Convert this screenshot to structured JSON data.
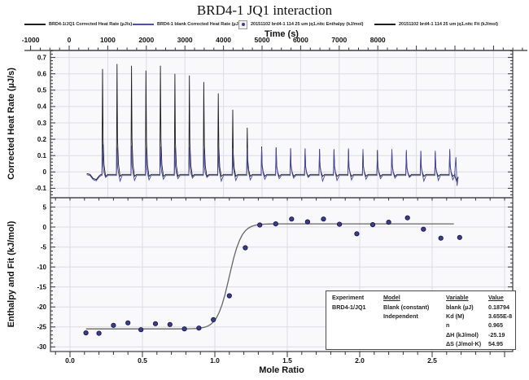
{
  "title": "BRD4-1 JQ1 interaction",
  "legend": {
    "items": [
      {
        "label": "BRD4-1/JQ1 Corrected Heat Rate (µJ/s)",
        "swatch": "line",
        "color": "#1c1c1c"
      },
      {
        "label": "BRD4-1 blank Corrected Heat Rate (µJ/s)",
        "swatch": "line",
        "color": "#5050b4"
      },
      {
        "label": "20151102 brd4-1 114 25 um jq1.nitc Enthalpy (kJ/mol)",
        "swatch": "boxed-dot",
        "color": "#3c3c8e"
      },
      {
        "label": "20151102 brd4-1 114 25 um jq1.nitc Fit (kJ/mol)",
        "swatch": "line",
        "color": "#1c1c1c"
      }
    ]
  },
  "chart_data": [
    {
      "id": "thermogram",
      "type": "line",
      "xlabel": "Time (s)",
      "ylabel": "Corrected Heat Rate (µJ/s)",
      "xlim": [
        -1160,
        11870
      ],
      "ylim": [
        -0.16,
        0.745
      ],
      "xticks": [
        [
          -1000,
          "-1000"
        ],
        [
          0,
          "0"
        ],
        [
          1000,
          "1000"
        ],
        [
          2000,
          "2000"
        ],
        [
          3000,
          "3000"
        ],
        [
          4000,
          "4000"
        ],
        [
          5000,
          "5000"
        ],
        [
          6000,
          "6000"
        ],
        [
          7000,
          "7000"
        ],
        [
          8000,
          "8000"
        ]
      ],
      "yticks": [
        [
          0.7,
          "0.7"
        ],
        [
          0.6,
          "0.6"
        ],
        [
          0.5,
          "0.5"
        ],
        [
          0.4,
          "0.4"
        ],
        [
          0.3,
          "0.3"
        ],
        [
          0.2,
          "0.2"
        ],
        [
          0.1,
          "0.1"
        ],
        [
          0,
          "0"
        ],
        [
          -0.1,
          "-0.1"
        ]
      ],
      "injection_start": 859,
      "injection_interval": 375,
      "series": [
        {
          "name": "BRD4-1/JQ1 Corrected Heat Rate",
          "color": "#1c1c1c",
          "baseline": -0.015,
          "peaks": [
            0.63,
            0.66,
            0.65,
            0.62,
            0.65,
            0.6,
            0.59,
            0.55,
            0.48,
            0.38,
            0.27,
            0.155,
            0.15,
            0.145,
            0.14,
            0.14,
            0.135,
            0.135,
            0.13,
            0.13,
            0.13,
            0.125,
            0.125,
            0.12,
            0.13
          ]
        },
        {
          "name": "BRD4-1 blank Corrected Heat Rate",
          "color": "#4646ad",
          "baseline": -0.022,
          "peaks": [
            0.17,
            0.15,
            0.16,
            0.15,
            0.155,
            0.15,
            0.15,
            0.145,
            0.15,
            0.145,
            0.15,
            0.145,
            0.15,
            0.14,
            0.145,
            0.14,
            0.14,
            0.145,
            0.14,
            0.135,
            0.14,
            0.135,
            0.13,
            0.13,
            0.14
          ]
        }
      ]
    },
    {
      "id": "binding-isotherm",
      "type": "scatter",
      "xlabel": "Mole Ratio",
      "ylabel": "Enthalpy and Fit (kJ/mol)",
      "xlim": [
        -0.135,
        3.06
      ],
      "ylim": [
        -31.2,
        7.4
      ],
      "xticks": [
        [
          0,
          "0.0"
        ],
        [
          0.5,
          "0.5"
        ],
        [
          1,
          "1.0"
        ],
        [
          1.5,
          "1.5"
        ],
        [
          2,
          "2.0"
        ],
        [
          2.5,
          "2.5"
        ]
      ],
      "yticks": [
        [
          5,
          "5"
        ],
        [
          0,
          "0"
        ],
        [
          -5,
          "-5"
        ],
        [
          -10,
          "-10"
        ],
        [
          -15,
          "-15"
        ],
        [
          -20,
          "-20"
        ],
        [
          -25,
          "-25"
        ],
        [
          -30,
          "-30"
        ]
      ],
      "point_color": "#3c3c8e",
      "point_edge": "#101040",
      "points": [
        [
          0.11,
          -26.5
        ],
        [
          0.2,
          -26.6
        ],
        [
          0.3,
          -24.6
        ],
        [
          0.4,
          -24.0
        ],
        [
          0.49,
          -25.7
        ],
        [
          0.59,
          -24.2
        ],
        [
          0.69,
          -24.4
        ],
        [
          0.79,
          -25.5
        ],
        [
          0.89,
          -25.3
        ],
        [
          0.99,
          -23.2
        ],
        [
          1.1,
          -17.2
        ],
        [
          1.21,
          -5.2
        ],
        [
          1.31,
          0.5
        ],
        [
          1.42,
          0.8
        ],
        [
          1.53,
          2.0
        ],
        [
          1.64,
          1.3
        ],
        [
          1.75,
          2.0
        ],
        [
          1.86,
          0.7
        ],
        [
          1.98,
          -1.7
        ],
        [
          2.09,
          0.6
        ],
        [
          2.2,
          1.2
        ],
        [
          2.33,
          2.3
        ],
        [
          2.44,
          -0.55
        ],
        [
          2.56,
          -2.8
        ],
        [
          2.69,
          -2.6
        ]
      ],
      "fit": {
        "low_plateau": -25.5,
        "high_plateau": 0.8,
        "midpoint": 1.1,
        "steepness": 24,
        "x_start": 0.11,
        "x_end": 2.65,
        "color": "#666666"
      }
    }
  ],
  "table": {
    "headers": [
      "Experiment",
      "Model",
      "Variable",
      "Value"
    ],
    "rows": [
      [
        "BRD4-1/JQ1",
        "Blank (constant)",
        "blank (µJ)",
        "0.18794"
      ],
      [
        "",
        "Independent",
        "Kd (M)",
        "3.655E-8"
      ],
      [
        "",
        "",
        "n",
        "0.965"
      ],
      [
        "",
        "",
        "ΔH (kJ/mol)",
        "-25.19"
      ],
      [
        "",
        "",
        "ΔS (J/mol·K)",
        "54.95"
      ]
    ]
  },
  "colors": {
    "grid": "#dcdce3",
    "frame": "#55555e",
    "plot_bg": "#f9f9fb",
    "text": "#111111"
  }
}
